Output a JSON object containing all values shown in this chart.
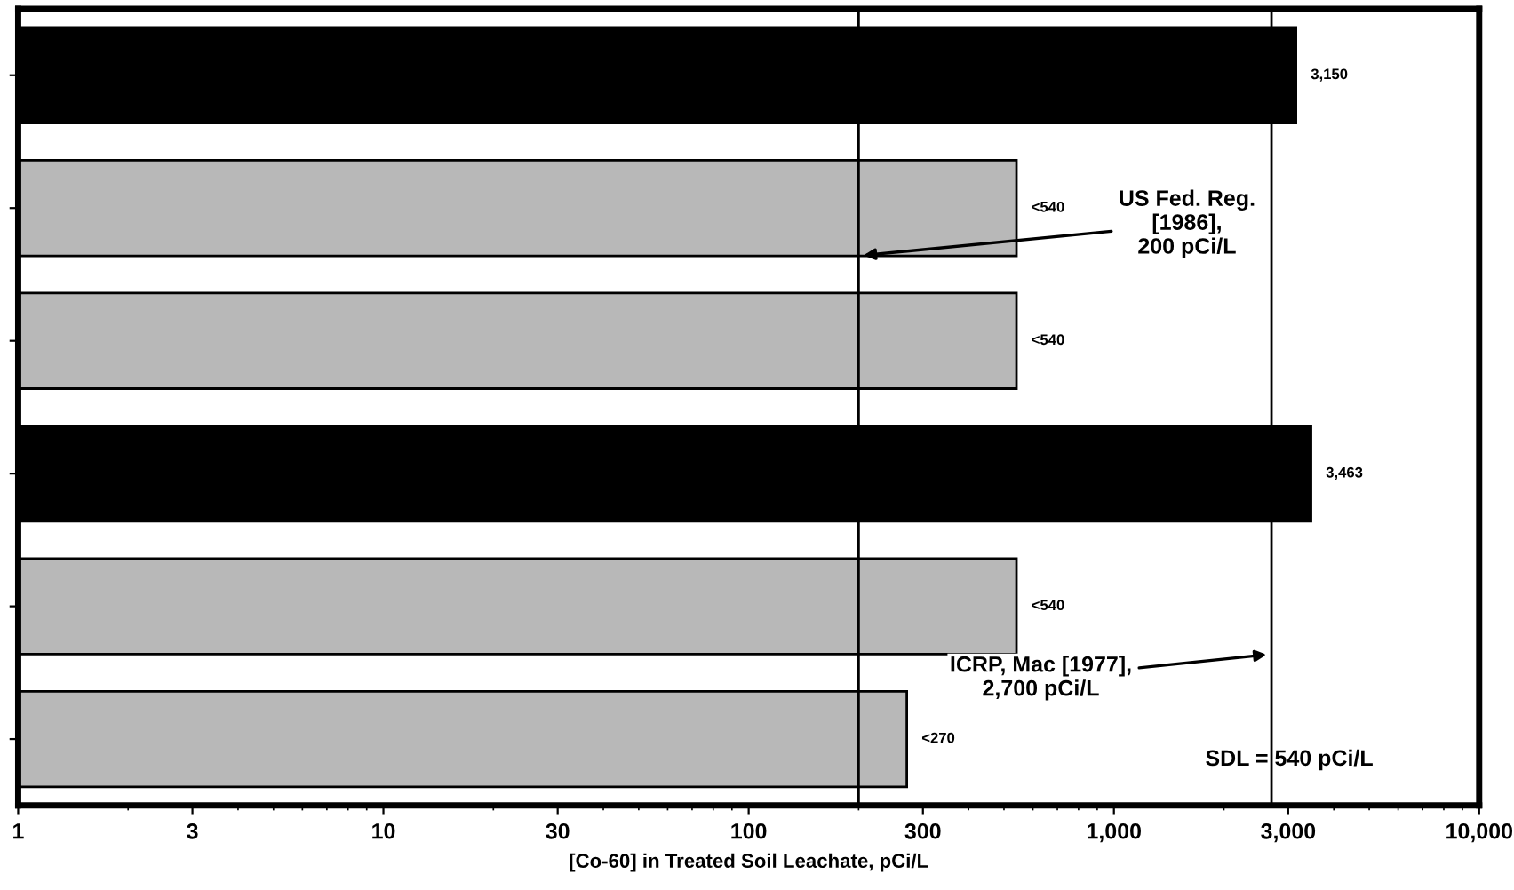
{
  "chart_data": {
    "type": "bar",
    "orientation": "horizontal",
    "xlabel": "[Co-60] in Treated Soil Leachate, pCi/L",
    "categories": [
      null,
      null,
      null,
      null,
      null,
      null
    ],
    "values": [
      3150,
      540,
      540,
      3463,
      540,
      270
    ],
    "value_labels": [
      "3,150",
      "<540",
      "<540",
      "3,463",
      "<540",
      "<270"
    ],
    "colors": [
      "#000000",
      "#b8b8b8",
      "#b8b8b8",
      "#000000",
      "#b8b8b8",
      "#b8b8b8"
    ],
    "log": "x",
    "xlim": [
      1,
      10000
    ],
    "xticks": [
      1,
      3,
      10,
      30,
      100,
      300,
      {
        "value": 1000,
        "label": "1,000"
      },
      {
        "value": 3000,
        "label": "3,000"
      },
      {
        "value": 10000,
        "label": "10,000"
      }
    ],
    "ref_lines": [
      {
        "axis": "x",
        "value": 200,
        "label": "US Fed. Reg.\n[1986],\n200 pCi/L",
        "color": "#000000"
      },
      {
        "axis": "x",
        "value": 2700,
        "label": "ICRP, Mac [1977],\n2,700 pCi/L",
        "color": "#000000"
      }
    ],
    "annotations": [
      "SDL = 540 pCi/L"
    ],
    "grid": false
  }
}
